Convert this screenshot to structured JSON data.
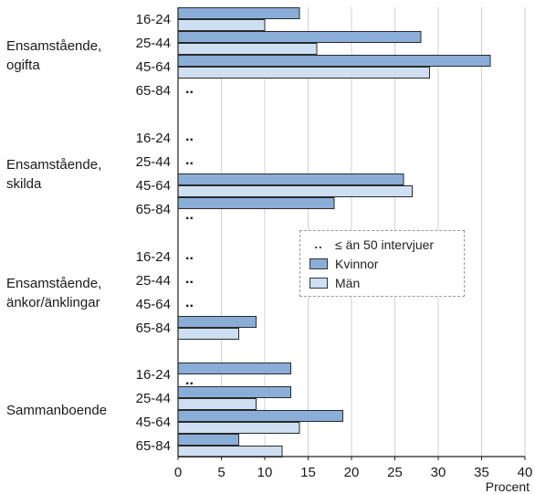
{
  "chart_data": {
    "type": "bar",
    "orientation": "horizontal",
    "xlabel": "Procent",
    "xlim": [
      0,
      40
    ],
    "xticks": [
      0,
      5,
      10,
      15,
      20,
      25,
      30,
      35,
      40
    ],
    "grid": true,
    "legend_placement": "center-right",
    "missing_marker": "..",
    "groups": [
      {
        "label": "Ensamstående,\nogifta",
        "rows": [
          {
            "age": "16-24",
            "kvinnor": 14,
            "man": 10
          },
          {
            "age": "25-44",
            "kvinnor": 28,
            "man": 16
          },
          {
            "age": "45-64",
            "kvinnor": 36,
            "man": 29
          },
          {
            "age": "65-84",
            "kvinnor": null,
            "man": null
          }
        ]
      },
      {
        "label": "Ensamstående,\nskilda",
        "rows": [
          {
            "age": "16-24",
            "kvinnor": null,
            "man": null
          },
          {
            "age": "25-44",
            "kvinnor": null,
            "man": null
          },
          {
            "age": "45-64",
            "kvinnor": 26,
            "man": 27
          },
          {
            "age": "65-84",
            "kvinnor": 18,
            "man": null
          }
        ]
      },
      {
        "label": "Ensamstående,\nänkor/änklingar",
        "rows": [
          {
            "age": "16-24",
            "kvinnor": null,
            "man": null
          },
          {
            "age": "25-44",
            "kvinnor": null,
            "man": null
          },
          {
            "age": "45-64",
            "kvinnor": null,
            "man": null
          },
          {
            "age": "65-84",
            "kvinnor": 9,
            "man": 7
          }
        ]
      },
      {
        "label": "Sammanboende",
        "rows": [
          {
            "age": "16-24",
            "kvinnor": 13,
            "man": null
          },
          {
            "age": "25-44",
            "kvinnor": 13,
            "man": 9
          },
          {
            "age": "45-64",
            "kvinnor": 19,
            "man": 14
          },
          {
            "age": "65-84",
            "kvinnor": 7,
            "man": 12
          }
        ]
      }
    ],
    "series": [
      {
        "key": "kvinnor",
        "name": "Kvinnor",
        "color": "#8aaed8"
      },
      {
        "key": "man",
        "name": "Män",
        "color": "#cddff0"
      }
    ]
  },
  "legend": {
    "missing_label": "≤ än 50 intervjuer",
    "missing_dots": "..",
    "kvinnor_label": "Kvinnor",
    "man_label": "Män",
    "kvinnor_color": "#8aaed8",
    "man_color": "#cddff0"
  }
}
